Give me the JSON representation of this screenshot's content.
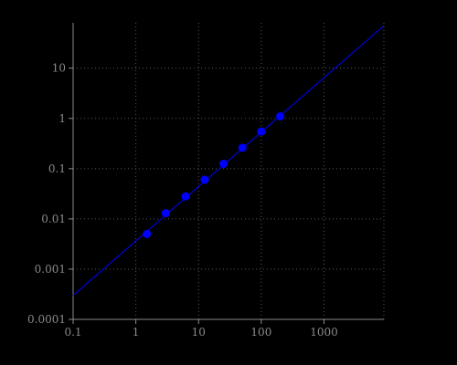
{
  "chart_data": {
    "type": "scatter",
    "title": "",
    "xlabel": "",
    "ylabel": "",
    "x_scale": "log",
    "y_scale": "log",
    "xlim": [
      0.1,
      9000
    ],
    "ylim": [
      0.0001,
      80
    ],
    "grid": true,
    "x_ticks": [
      {
        "value": 0.1,
        "label": "0.1"
      },
      {
        "value": 1,
        "label": "1"
      },
      {
        "value": 10,
        "label": "10"
      },
      {
        "value": 100,
        "label": "100"
      },
      {
        "value": 1000,
        "label": "1000"
      }
    ],
    "y_ticks": [
      {
        "value": 0.0001,
        "label": "0.0001"
      },
      {
        "value": 0.001,
        "label": "0.001"
      },
      {
        "value": 0.01,
        "label": "0.01"
      },
      {
        "value": 0.1,
        "label": "0.1"
      },
      {
        "value": 1,
        "label": "1"
      },
      {
        "value": 10,
        "label": "10"
      }
    ],
    "series": [
      {
        "kind": "scatter",
        "color": "#0000ff",
        "x": [
          1.5,
          3,
          6.2,
          12.5,
          25,
          50,
          100,
          200
        ],
        "y": [
          0.005,
          0.013,
          0.028,
          0.06,
          0.125,
          0.26,
          0.55,
          1.1
        ]
      },
      {
        "kind": "line",
        "color": "#0000cc",
        "x": [
          0.1,
          9000
        ],
        "y": [
          0.0003,
          70
        ]
      }
    ]
  }
}
